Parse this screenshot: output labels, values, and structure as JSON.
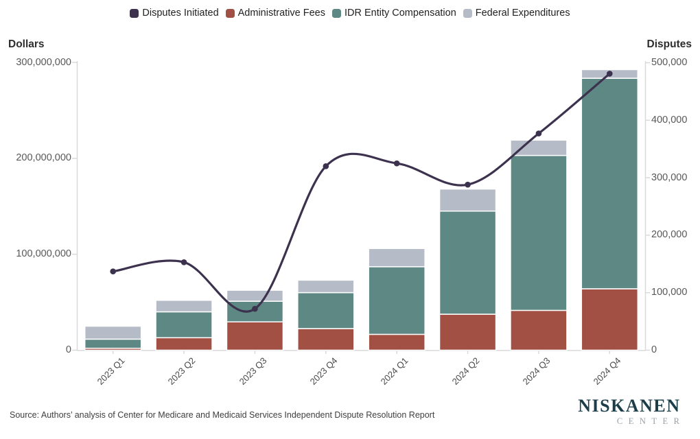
{
  "legend": {
    "items": [
      {
        "label": "Disputes Initiated",
        "color": "#3c324e"
      },
      {
        "label": "Administrative Fees",
        "color": "#a35044"
      },
      {
        "label": "IDR Entity Compensation",
        "color": "#5d8884"
      },
      {
        "label": "Federal Expenditures",
        "color": "#b5bcc8"
      }
    ]
  },
  "left_axis": {
    "title": "Dollars",
    "tick_labels": [
      "300,000,000",
      "200,000,000",
      "100,000,000",
      "0"
    ]
  },
  "right_axis": {
    "title": "Disputes",
    "tick_labels": [
      "500,000",
      "400,000",
      "300,000",
      "200,000",
      "100,000",
      "0"
    ]
  },
  "chart_data": {
    "type": "combo-stacked-bar-line",
    "categories": [
      "2023 Q1",
      "2023 Q2",
      "2023 Q3",
      "2023 Q4",
      "2024 Q1",
      "2024 Q2",
      "2024 Q3",
      "2024 Q4"
    ],
    "series": [
      {
        "name": "Administrative Fees",
        "type": "bar",
        "axis": "left",
        "color": "#a35044",
        "values": [
          2000000,
          13000000,
          29500000,
          22500000,
          16500000,
          37500000,
          41500000,
          64000000
        ]
      },
      {
        "name": "IDR Entity Compensation",
        "type": "bar",
        "axis": "left",
        "color": "#5d8884",
        "values": [
          9500000,
          27000000,
          21500000,
          37500000,
          70500000,
          107500000,
          161500000,
          219500000
        ]
      },
      {
        "name": "Federal Expenditures",
        "type": "bar",
        "axis": "left",
        "color": "#b5bcc8",
        "values": [
          13500000,
          12000000,
          11500000,
          13000000,
          19000000,
          23000000,
          16000000,
          9000000
        ]
      },
      {
        "name": "Disputes Initiated",
        "type": "line",
        "axis": "right",
        "color": "#3c324e",
        "values": [
          137000,
          153000,
          72000,
          320000,
          325000,
          288000,
          377000,
          481000
        ]
      }
    ],
    "stacked": true,
    "grid": false,
    "legend_position": "top",
    "left_axis": {
      "label": "Dollars",
      "range": [
        0,
        300000000
      ]
    },
    "right_axis": {
      "label": "Disputes",
      "range": [
        0,
        500000
      ]
    }
  },
  "source": "Source: Authors’ analysis of Center for Medicare and Medicaid Services Independent Dispute Resolution Report",
  "logo": {
    "name": "NISKANEN",
    "subname": "C E N T E R",
    "subname_plain": "CENTER"
  }
}
